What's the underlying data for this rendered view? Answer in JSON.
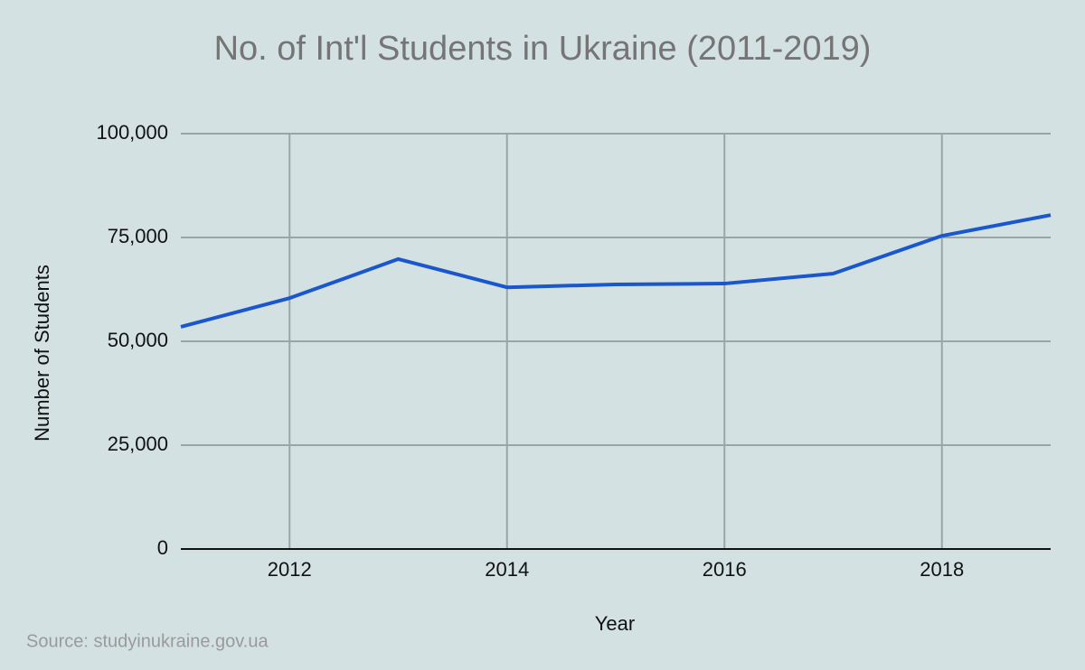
{
  "chart_data": {
    "type": "line",
    "title": "No. of Int'l Students in Ukraine (2011-2019)",
    "x_label": "Year",
    "y_label": "Number of Students",
    "source": "Source: studyinukraine.gov.ua",
    "x": [
      2011,
      2012,
      2013,
      2014,
      2015,
      2016,
      2017,
      2018,
      2019
    ],
    "series": [
      {
        "name": "Number of Students",
        "color": "#1a56cc",
        "values": [
          53500,
          60400,
          69800,
          63000,
          63700,
          63900,
          66300,
          75400,
          80400
        ]
      }
    ],
    "xlim": [
      2011,
      2019
    ],
    "xticks": [
      2012,
      2014,
      2016,
      2018
    ],
    "ylim": [
      0,
      100000
    ],
    "yticks": [
      0,
      {
        "value": 25000,
        "label": "25,000"
      },
      {
        "value": 50000,
        "label": "50,000"
      },
      {
        "value": 75000,
        "label": "75,000"
      },
      {
        "value": 100000,
        "label": "100,000"
      }
    ],
    "grid": true
  }
}
